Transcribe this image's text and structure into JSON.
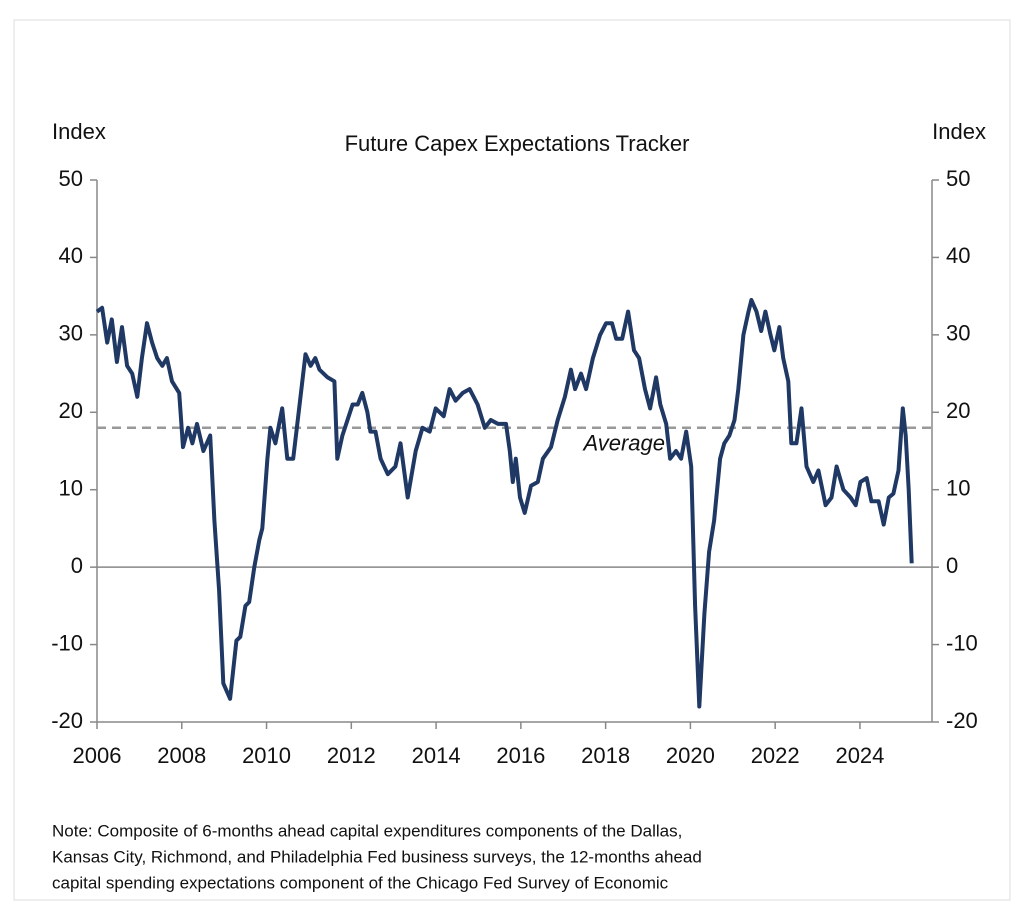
{
  "chart_data": {
    "type": "line",
    "title": "Future Capex Expectations Tracker",
    "ylabel": "Index",
    "y2label": "Index",
    "note": [
      "Note: Composite of 6-months ahead capital expenditures components of the Dallas,",
      "Kansas City, Richmond, and Philadelphia Fed business surveys, the 12-months ahead",
      "capital spending expectations component of the Chicago Fed Survey of Economic"
    ],
    "average": {
      "value": 18,
      "label": "Average"
    },
    "x": [
      2006.0,
      2006.12,
      2006.24,
      2006.35,
      2006.47,
      2006.59,
      2006.71,
      2006.83,
      2006.95,
      2007.06,
      2007.18,
      2007.3,
      2007.42,
      2007.54,
      2007.65,
      2007.77,
      2007.94,
      2008.03,
      2008.15,
      2008.25,
      2008.36,
      2008.51,
      2008.67,
      2008.77,
      2008.88,
      2008.98,
      2009.14,
      2009.29,
      2009.38,
      2009.5,
      2009.59,
      2009.71,
      2009.83,
      2009.9,
      2010.02,
      2010.09,
      2010.21,
      2010.37,
      2010.49,
      2010.63,
      2010.78,
      2010.92,
      2011.04,
      2011.15,
      2011.25,
      2011.44,
      2011.6,
      2011.67,
      2011.79,
      2011.91,
      2012.03,
      2012.15,
      2012.26,
      2012.38,
      2012.45,
      2012.57,
      2012.69,
      2012.86,
      2013.04,
      2013.16,
      2013.33,
      2013.52,
      2013.68,
      2013.85,
      2013.99,
      2014.18,
      2014.32,
      2014.46,
      2014.63,
      2014.79,
      2014.98,
      2015.15,
      2015.29,
      2015.46,
      2015.65,
      2015.74,
      2015.81,
      2015.88,
      2015.98,
      2016.09,
      2016.24,
      2016.4,
      2016.52,
      2016.71,
      2016.87,
      2017.04,
      2017.18,
      2017.28,
      2017.42,
      2017.54,
      2017.7,
      2017.87,
      2018.01,
      2018.15,
      2018.25,
      2018.39,
      2018.53,
      2018.67,
      2018.79,
      2018.93,
      2019.05,
      2019.19,
      2019.29,
      2019.43,
      2019.52,
      2019.66,
      2019.78,
      2019.9,
      2020.02,
      2020.11,
      2020.21,
      2020.33,
      2020.44,
      2020.56,
      2020.7,
      2020.8,
      2020.92,
      2021.04,
      2021.13,
      2021.25,
      2021.37,
      2021.44,
      2021.56,
      2021.67,
      2021.77,
      2021.89,
      2021.98,
      2022.1,
      2022.19,
      2022.31,
      2022.38,
      2022.5,
      2022.62,
      2022.74,
      2022.9,
      2023.02,
      2023.19,
      2023.33,
      2023.45,
      2023.61,
      2023.78,
      2023.9,
      2024.01,
      2024.16,
      2024.27,
      2024.44,
      2024.56,
      2024.68,
      2024.79,
      2024.91,
      2025.01,
      2025.08,
      2025.15,
      2025.22
    ],
    "series": [
      {
        "name": "Future Capex Expectations Tracker",
        "color": "#1f3864",
        "values": [
          33,
          33.5,
          29,
          32,
          26.5,
          31,
          26,
          25,
          22,
          27,
          31.5,
          29,
          27,
          26,
          27,
          24,
          22.5,
          15.5,
          18,
          16,
          18.5,
          15,
          17,
          6,
          -3,
          -15,
          -17,
          -9.5,
          -9,
          -5,
          -4.5,
          0,
          3.5,
          5,
          14,
          18,
          16,
          20.5,
          14,
          14,
          21,
          27.5,
          26,
          27,
          25.5,
          24.5,
          24,
          14,
          17,
          19,
          21,
          21,
          22.5,
          20,
          17.5,
          17.5,
          14,
          12,
          13,
          16,
          9,
          15,
          18,
          17.5,
          20.5,
          19.5,
          23,
          21.5,
          22.5,
          23,
          21,
          18,
          19,
          18.5,
          18.5,
          15,
          11,
          14,
          9,
          7,
          10.5,
          11,
          14,
          15.5,
          19,
          22,
          25.5,
          23,
          25,
          23,
          27,
          30,
          31.5,
          31.5,
          29.5,
          29.5,
          33,
          28,
          27,
          23,
          20.5,
          24.5,
          21,
          18.5,
          14,
          15,
          14,
          17.5,
          13,
          -5,
          -18,
          -6,
          2,
          6,
          14,
          16,
          17,
          19,
          23,
          30,
          33,
          34.5,
          33,
          30.5,
          33,
          30,
          28,
          31,
          27,
          24,
          16,
          16,
          20.5,
          13,
          11,
          12.5,
          8,
          9,
          13,
          10,
          9,
          8,
          11,
          11.5,
          8.5,
          8.5,
          5.5,
          9,
          9.5,
          12.5,
          20.5,
          17,
          10,
          0.5
        ]
      }
    ],
    "xlim": [
      2006,
      2025.7
    ],
    "xticks": [
      2006,
      2008,
      2010,
      2012,
      2014,
      2016,
      2018,
      2020,
      2022,
      2024
    ],
    "ylim": [
      -20,
      50
    ],
    "yticks": [
      -20,
      -10,
      0,
      10,
      20,
      30,
      40,
      50
    ],
    "y2lim": [
      -20,
      50
    ],
    "y2ticks": [
      -20,
      -10,
      0,
      10,
      20,
      30,
      40,
      50
    ]
  }
}
